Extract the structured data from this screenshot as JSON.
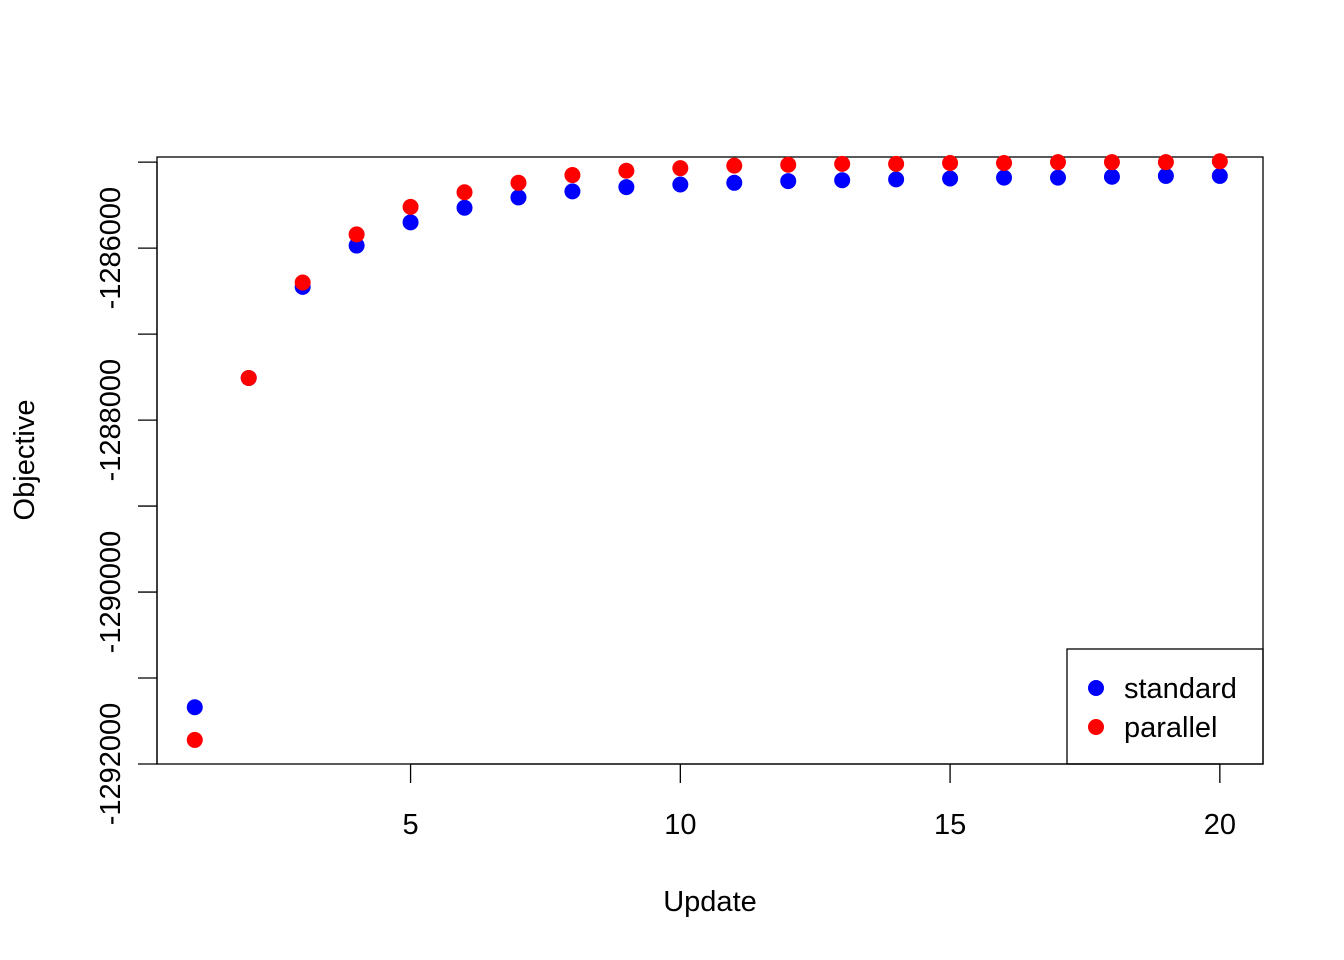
{
  "chart_data": {
    "type": "scatter",
    "title": "",
    "xlabel": "Update",
    "ylabel": "Objective",
    "xlim": [
      0.3,
      20.8
    ],
    "ylim": [
      -1292000,
      -1284940
    ],
    "x_ticks": [
      5,
      10,
      15,
      20
    ],
    "x_tick_labels": [
      "5",
      "10",
      "15",
      "20"
    ],
    "y_ticks": [
      -1292000,
      -1291000,
      -1290000,
      -1289000,
      -1288000,
      -1287000,
      -1286000,
      -1285000
    ],
    "y_tick_labels": [
      "-1292000",
      "",
      "-1290000",
      "",
      "-1288000",
      "",
      "-1286000",
      ""
    ],
    "x": [
      1,
      2,
      3,
      4,
      5,
      6,
      7,
      8,
      9,
      10,
      11,
      12,
      13,
      14,
      15,
      16,
      17,
      18,
      19,
      20
    ],
    "series": [
      {
        "name": "standard",
        "color": "#0000ff",
        "values": [
          -1291340,
          -1287510,
          -1286450,
          -1285970,
          -1285700,
          -1285530,
          -1285410,
          -1285340,
          -1285290,
          -1285260,
          -1285240,
          -1285220,
          -1285210,
          -1285200,
          -1285190,
          -1285180,
          -1285180,
          -1285170,
          -1285160,
          -1285160
        ]
      },
      {
        "name": "parallel",
        "color": "#ff0000",
        "values": [
          -1291720,
          -1287510,
          -1286400,
          -1285840,
          -1285520,
          -1285350,
          -1285240,
          -1285150,
          -1285100,
          -1285070,
          -1285040,
          -1285030,
          -1285020,
          -1285020,
          -1285010,
          -1285010,
          -1285000,
          -1285000,
          -1285000,
          -1284990
        ]
      }
    ],
    "legend": {
      "position": "bottom-right",
      "entries": [
        {
          "label": "standard",
          "color": "#0000ff"
        },
        {
          "label": "parallel",
          "color": "#ff0000"
        }
      ]
    },
    "grid": false
  }
}
